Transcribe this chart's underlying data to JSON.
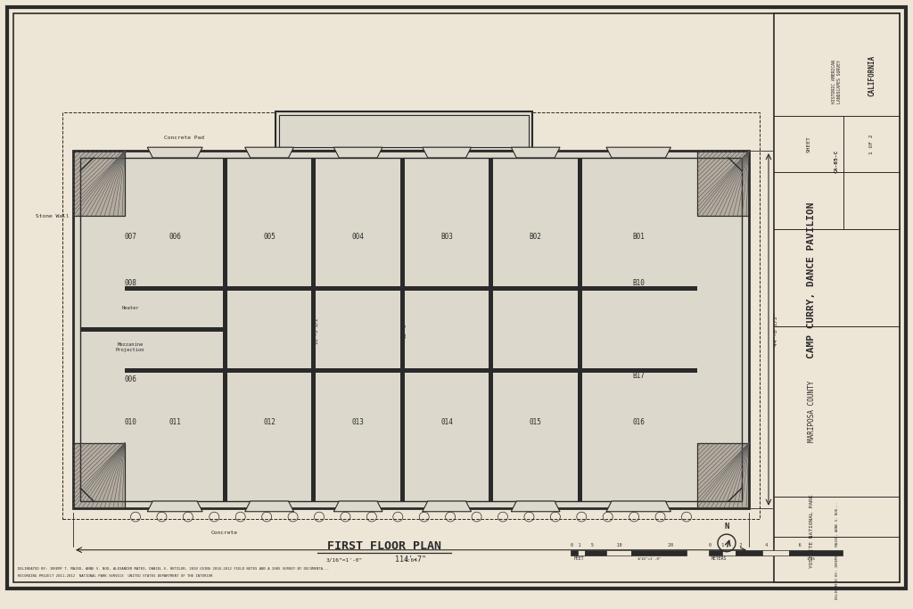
{
  "paper_color": "#ede5d5",
  "line_color": "#2a2a2a",
  "title": "FIRST FLOOR PLAN",
  "main_title": "CAMP CURRY, DANCE PAVILION",
  "sub_title2": "MARIPOSA COUNTY",
  "location": "YOSEMITE NATIONAL PARK",
  "state": "CALIFORNIA",
  "sheet": "1 OF 2",
  "habs": "CA-65-C"
}
